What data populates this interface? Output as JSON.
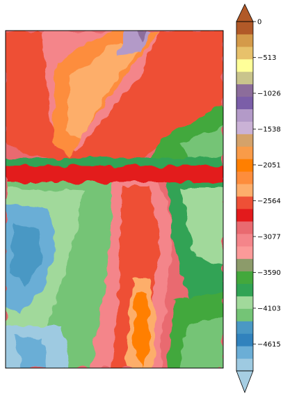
{
  "chart_data": {
    "type": "heatmap",
    "title": "",
    "xlabel": "",
    "ylabel": "",
    "colorbar": {
      "range": [
        -5000,
        0
      ],
      "extend": "both",
      "ticks": [
        0,
        -513,
        -1026,
        -1538,
        -2051,
        -2564,
        -3077,
        -3590,
        -4103,
        -4615
      ],
      "tick_labels": [
        "0",
        "−513",
        "−1026",
        "−1538",
        "−2051",
        "−2564",
        "−3077",
        "−3590",
        "−4103",
        "−4615"
      ],
      "level_colors": [
        "#9ecae1",
        "#6baed6",
        "#3182bd",
        "#4a98c4",
        "#74c476",
        "#a1d99b",
        "#31a354",
        "#43a83c",
        "#8c9b6a",
        "#fb9a99",
        "#f4858a",
        "#e96a70",
        "#e31a1c",
        "#ee5036",
        "#fdae6b",
        "#fd8d3c",
        "#ff7f00",
        "#f99b48",
        "#d4a26a",
        "#cab2d6",
        "#b39ac8",
        "#7b5ea8",
        "#8c6d9b",
        "#c9c48c",
        "#ffff99",
        "#e7c16b",
        "#d49a4a",
        "#b15928"
      ],
      "extend_low_color": "#a6cee3",
      "extend_high_color": "#b15928"
    }
  }
}
